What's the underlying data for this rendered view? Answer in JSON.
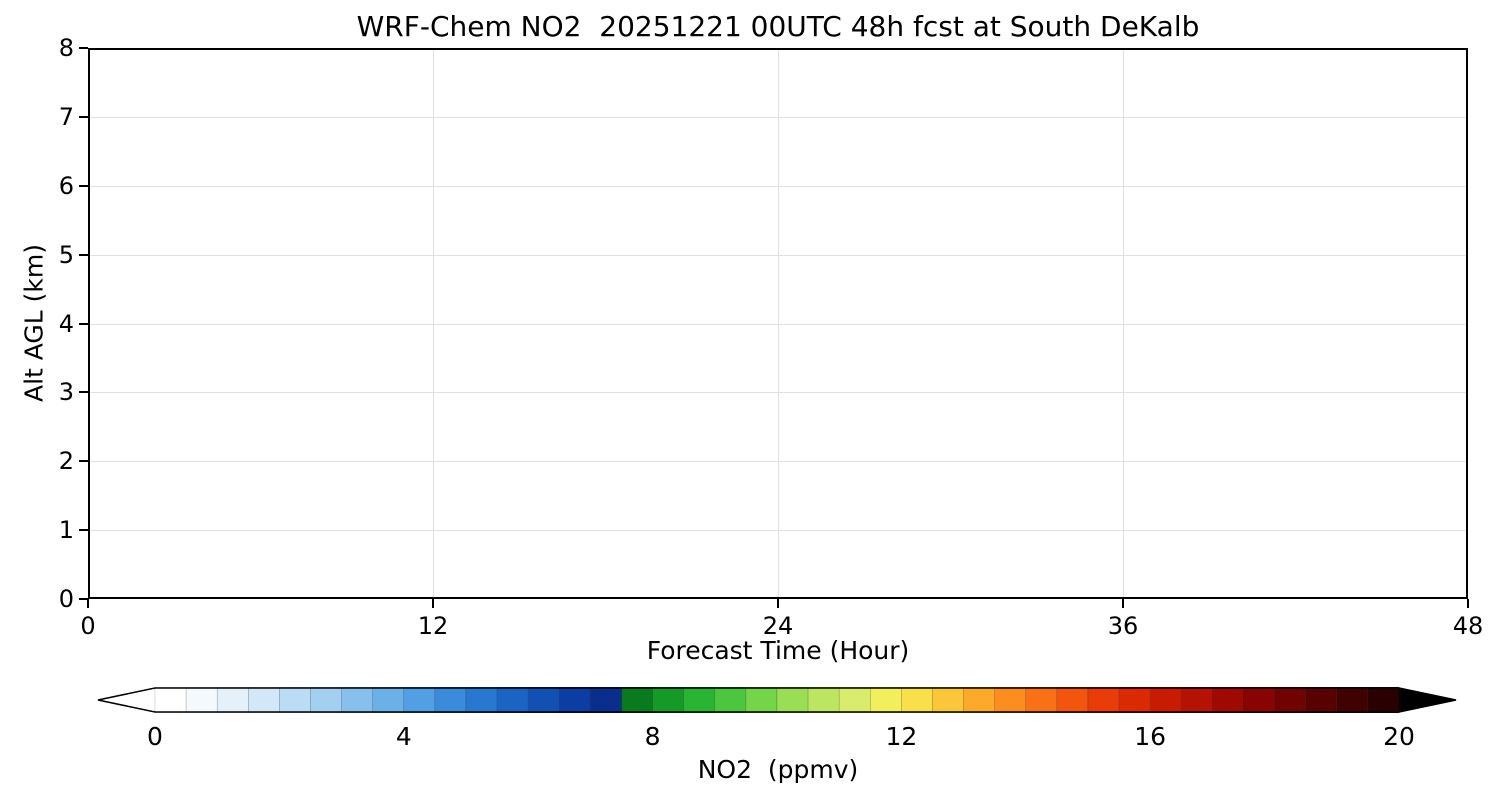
{
  "chart_data": {
    "type": "heatmap",
    "title": "WRF-Chem NO2  20251221 00UTC 48h fcst at South DeKalb",
    "xlabel": "Forecast Time (Hour)",
    "ylabel": "Alt AGL (km)",
    "x_ticks": [
      0,
      12,
      24,
      36,
      48
    ],
    "y_ticks": [
      0,
      1,
      2,
      3,
      4,
      5,
      6,
      7,
      8
    ],
    "xlim": [
      0,
      48
    ],
    "ylim": [
      0,
      8
    ],
    "grid": true,
    "values": [],
    "plot_area_empty": true,
    "colorbar": {
      "label": "NO2  (ppmv)",
      "ticks": [
        0,
        4,
        8,
        12,
        16,
        20
      ],
      "vmin": 0,
      "vmax": 20,
      "extend": "both",
      "under_color": "#ffffff",
      "over_color": "#000000",
      "segment_colors": [
        "#ffffff",
        "#f4f9fe",
        "#e4f1fb",
        "#d2e7f8",
        "#bcdcf5",
        "#a3cff1",
        "#88c0ed",
        "#6cb0e8",
        "#529fe3",
        "#3a8cda",
        "#2878d0",
        "#1b64c4",
        "#1250b4",
        "#0c3da2",
        "#0a2e8c",
        "#0a7a1e",
        "#159a28",
        "#2ab433",
        "#4cc63e",
        "#74d44a",
        "#9ade55",
        "#bce562",
        "#d9ec6e",
        "#f2ef5e",
        "#f9e04a",
        "#fcc63a",
        "#fdaa2c",
        "#fc8d20",
        "#f97116",
        "#f2550e",
        "#e83d08",
        "#da2a04",
        "#c81c02",
        "#b41202",
        "#9e0a02",
        "#880402",
        "#700202",
        "#580101",
        "#400101",
        "#2a0000"
      ]
    }
  }
}
